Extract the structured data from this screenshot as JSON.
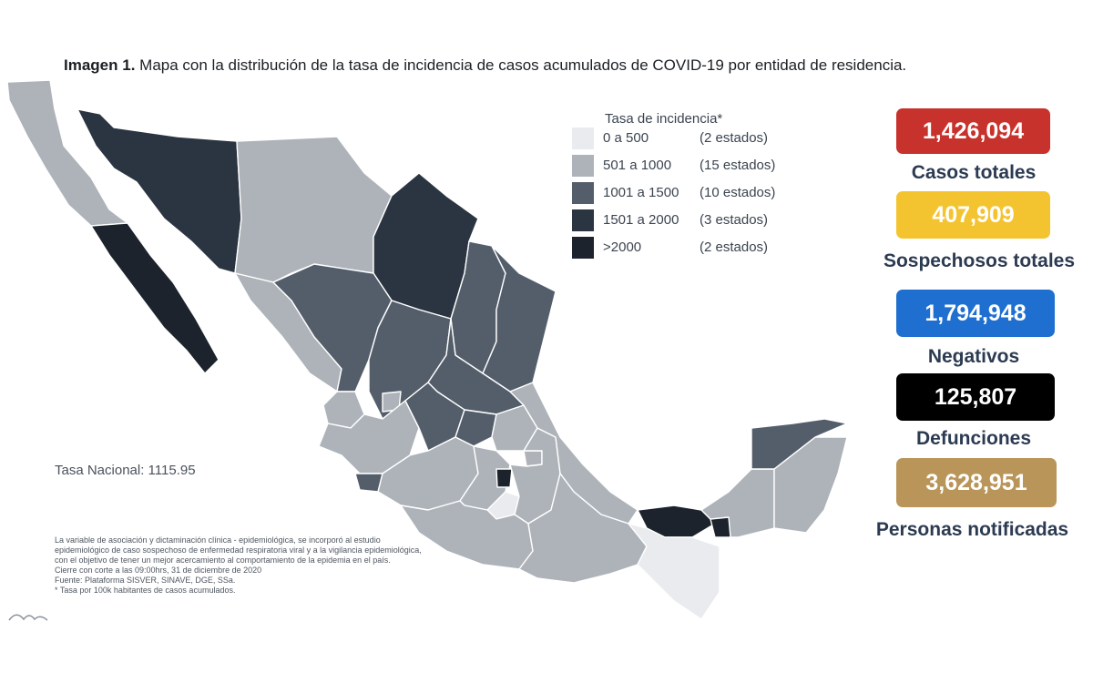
{
  "title": {
    "bold": "Imagen 1.",
    "text": "Mapa con la distribución de la tasa de incidencia de casos acumulados de COVID-19 por entidad de residencia."
  },
  "legend": {
    "title": "Tasa de incidencia*",
    "rows": [
      {
        "range": "0 a   500",
        "count": "(2 estados)",
        "color": "#e9ebee"
      },
      {
        "range": "501 a 1000",
        "count": "(15 estados)",
        "color": "#aeb3ba"
      },
      {
        "range": "1001 a 1500",
        "count": "(10 estados)",
        "color": "#545e6b"
      },
      {
        "range": "1501 a 2000",
        "count": "(3 estados)",
        "color": "#2b3541"
      },
      {
        "range": ">2000",
        "count": "(2 estados)",
        "color": "#1c232d"
      }
    ]
  },
  "national_rate": "Tasa Nacional: 1115.95",
  "notes": [
    "La variable de asociación y dictaminación clínica - epidemiológica, se incorporó al estudio",
    "epidemiológico de caso sospechoso de enfermedad respiratoria viral y a la vigilancia epidemiológica,",
    "con el objetivo de tener un mejor acercamiento al comportamiento de la epidemia en el país.",
    "Cierre con corte a las 09:00hrs, 31 de diciembre de 2020",
    "Fuente: Plataforma SISVER, SINAVE, DGE, SSa.",
    "* Tasa por 100k habitantes de casos acumulados."
  ],
  "stats": [
    {
      "value": "1,426,094",
      "label": "Casos totales",
      "color": "#c8322c"
    },
    {
      "value": "407,909",
      "label": "Sospechosos totales",
      "color": "#f4c430"
    },
    {
      "value": "1,794,948",
      "label": "Negativos",
      "color": "#1f6fd0"
    },
    {
      "value": "125,807",
      "label": "Defunciones",
      "color": "#000000"
    },
    {
      "value": "3,628,951",
      "label": "Personas notificadas",
      "color": "#b9955a"
    }
  ],
  "colors": {
    "light": "#e9ebee",
    "gray": "#aeb3ba",
    "mid": "#545e6b",
    "dark": "#2b3541",
    "darkest": "#1c232d",
    "border": "#ffffff"
  }
}
